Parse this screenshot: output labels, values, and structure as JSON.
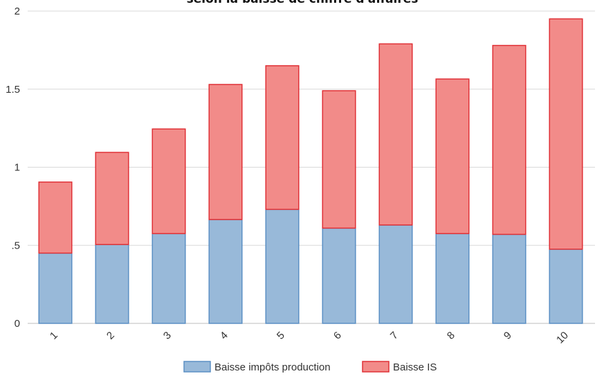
{
  "chart_data": {
    "type": "bar",
    "stacked": true,
    "title": "selon la baisse de chiffre d'affaires",
    "categories": [
      "1",
      "2",
      "3",
      "4",
      "5",
      "6",
      "7",
      "8",
      "9",
      "10"
    ],
    "yticks": [
      "0",
      ".5",
      "1",
      "1.5",
      "2"
    ],
    "ylim": [
      0,
      2
    ],
    "grid": true,
    "legend_position": "bottom",
    "series": [
      {
        "name": "Baisse impôts production",
        "color": "#98b9d9",
        "edge": "#5b8fc4",
        "values": [
          0.45,
          0.505,
          0.575,
          0.665,
          0.73,
          0.61,
          0.63,
          0.575,
          0.57,
          0.475
        ]
      },
      {
        "name": "Baisse IS",
        "color": "#f28b89",
        "edge": "#e03036",
        "values": [
          0.455,
          0.59,
          0.67,
          0.865,
          0.92,
          0.88,
          1.16,
          0.99,
          1.21,
          1.475
        ]
      }
    ]
  }
}
